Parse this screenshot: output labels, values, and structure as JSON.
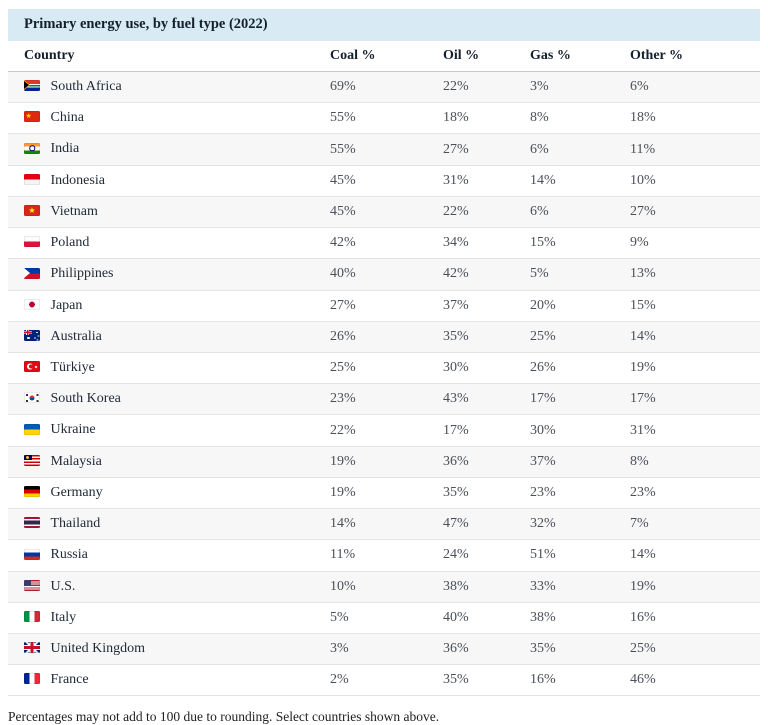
{
  "title_bar": {
    "title": "Primary energy use, by fuel type (2022)"
  },
  "table": {
    "columns": [
      "Country",
      "Coal %",
      "Oil %",
      "Gas %",
      "Other %"
    ],
    "rows": [
      {
        "country": "South Africa",
        "flag": "za",
        "flag_icon": "south-africa-flag-icon",
        "coal": "69%",
        "oil": "22%",
        "gas": "3%",
        "other": "6%"
      },
      {
        "country": "China",
        "flag": "cn",
        "flag_icon": "china-flag-icon",
        "coal": "55%",
        "oil": "18%",
        "gas": "8%",
        "other": "18%"
      },
      {
        "country": "India",
        "flag": "in",
        "flag_icon": "india-flag-icon",
        "coal": "55%",
        "oil": "27%",
        "gas": "6%",
        "other": "11%"
      },
      {
        "country": "Indonesia",
        "flag": "id",
        "flag_icon": "indonesia-flag-icon",
        "coal": "45%",
        "oil": "31%",
        "gas": "14%",
        "other": "10%"
      },
      {
        "country": "Vietnam",
        "flag": "vn",
        "flag_icon": "vietnam-flag-icon",
        "coal": "45%",
        "oil": "22%",
        "gas": "6%",
        "other": "27%"
      },
      {
        "country": "Poland",
        "flag": "pl",
        "flag_icon": "poland-flag-icon",
        "coal": "42%",
        "oil": "34%",
        "gas": "15%",
        "other": "9%"
      },
      {
        "country": "Philippines",
        "flag": "ph",
        "flag_icon": "philippines-flag-icon",
        "coal": "40%",
        "oil": "42%",
        "gas": "5%",
        "other": "13%"
      },
      {
        "country": "Japan",
        "flag": "jp",
        "flag_icon": "japan-flag-icon",
        "coal": "27%",
        "oil": "37%",
        "gas": "20%",
        "other": "15%"
      },
      {
        "country": "Australia",
        "flag": "au",
        "flag_icon": "australia-flag-icon",
        "coal": "26%",
        "oil": "35%",
        "gas": "25%",
        "other": "14%"
      },
      {
        "country": "Türkiye",
        "flag": "tr",
        "flag_icon": "turkiye-flag-icon",
        "coal": "25%",
        "oil": "30%",
        "gas": "26%",
        "other": "19%"
      },
      {
        "country": "South Korea",
        "flag": "kr",
        "flag_icon": "south-korea-flag-icon",
        "coal": "23%",
        "oil": "43%",
        "gas": "17%",
        "other": "17%"
      },
      {
        "country": "Ukraine",
        "flag": "ua",
        "flag_icon": "ukraine-flag-icon",
        "coal": "22%",
        "oil": "17%",
        "gas": "30%",
        "other": "31%"
      },
      {
        "country": "Malaysia",
        "flag": "my",
        "flag_icon": "malaysia-flag-icon",
        "coal": "19%",
        "oil": "36%",
        "gas": "37%",
        "other": "8%"
      },
      {
        "country": "Germany",
        "flag": "de",
        "flag_icon": "germany-flag-icon",
        "coal": "19%",
        "oil": "35%",
        "gas": "23%",
        "other": "23%"
      },
      {
        "country": "Thailand",
        "flag": "th",
        "flag_icon": "thailand-flag-icon",
        "coal": "14%",
        "oil": "47%",
        "gas": "32%",
        "other": "7%"
      },
      {
        "country": "Russia",
        "flag": "ru",
        "flag_icon": "russia-flag-icon",
        "coal": "11%",
        "oil": "24%",
        "gas": "51%",
        "other": "14%"
      },
      {
        "country": "U.S.",
        "flag": "us",
        "flag_icon": "us-flag-icon",
        "coal": "10%",
        "oil": "38%",
        "gas": "33%",
        "other": "19%"
      },
      {
        "country": "Italy",
        "flag": "it",
        "flag_icon": "italy-flag-icon",
        "coal": "5%",
        "oil": "40%",
        "gas": "38%",
        "other": "16%"
      },
      {
        "country": "United Kingdom",
        "flag": "gb",
        "flag_icon": "united-kingdom-flag-icon",
        "coal": "3%",
        "oil": "36%",
        "gas": "35%",
        "other": "25%"
      },
      {
        "country": "France",
        "flag": "fr",
        "flag_icon": "france-flag-icon",
        "coal": "2%",
        "oil": "35%",
        "gas": "16%",
        "other": "46%"
      }
    ]
  },
  "footnote": "Percentages may not add to 100 due to rounding. Select countries shown above.",
  "colors": {
    "title_bar_bg": "#d8eaf4",
    "row_alt_bg": "#f7f7f7",
    "header_border": "#c9c9c9",
    "row_border": "#e4e4e4",
    "text_dark": "#1e2936",
    "text_num": "#4a5058"
  },
  "chart_data": {
    "type": "table",
    "title": "Primary energy use, by fuel type (2022)",
    "columns": [
      "Country",
      "Coal %",
      "Oil %",
      "Gas %",
      "Other %"
    ],
    "categories": [
      "South Africa",
      "China",
      "India",
      "Indonesia",
      "Vietnam",
      "Poland",
      "Philippines",
      "Japan",
      "Australia",
      "Türkiye",
      "South Korea",
      "Ukraine",
      "Malaysia",
      "Germany",
      "Thailand",
      "Russia",
      "U.S.",
      "Italy",
      "United Kingdom",
      "France"
    ],
    "series": [
      {
        "name": "Coal %",
        "values": [
          69,
          55,
          55,
          45,
          45,
          42,
          40,
          27,
          26,
          25,
          23,
          22,
          19,
          19,
          14,
          11,
          10,
          5,
          3,
          2
        ]
      },
      {
        "name": "Oil %",
        "values": [
          22,
          18,
          27,
          31,
          22,
          34,
          42,
          37,
          35,
          30,
          43,
          17,
          36,
          35,
          47,
          24,
          38,
          40,
          36,
          35
        ]
      },
      {
        "name": "Gas %",
        "values": [
          3,
          8,
          6,
          14,
          6,
          15,
          5,
          20,
          25,
          26,
          17,
          30,
          37,
          23,
          32,
          51,
          33,
          38,
          35,
          16
        ]
      },
      {
        "name": "Other %",
        "values": [
          6,
          18,
          11,
          10,
          27,
          9,
          13,
          15,
          14,
          19,
          17,
          31,
          8,
          23,
          7,
          14,
          19,
          16,
          25,
          46
        ]
      }
    ],
    "footnote": "Percentages may not add to 100 due to rounding. Select countries shown above.",
    "layout": {
      "striped_rows": true,
      "title_bar_bg": "#d8eaf4",
      "row_alt_bg": "#f7f7f7"
    }
  }
}
